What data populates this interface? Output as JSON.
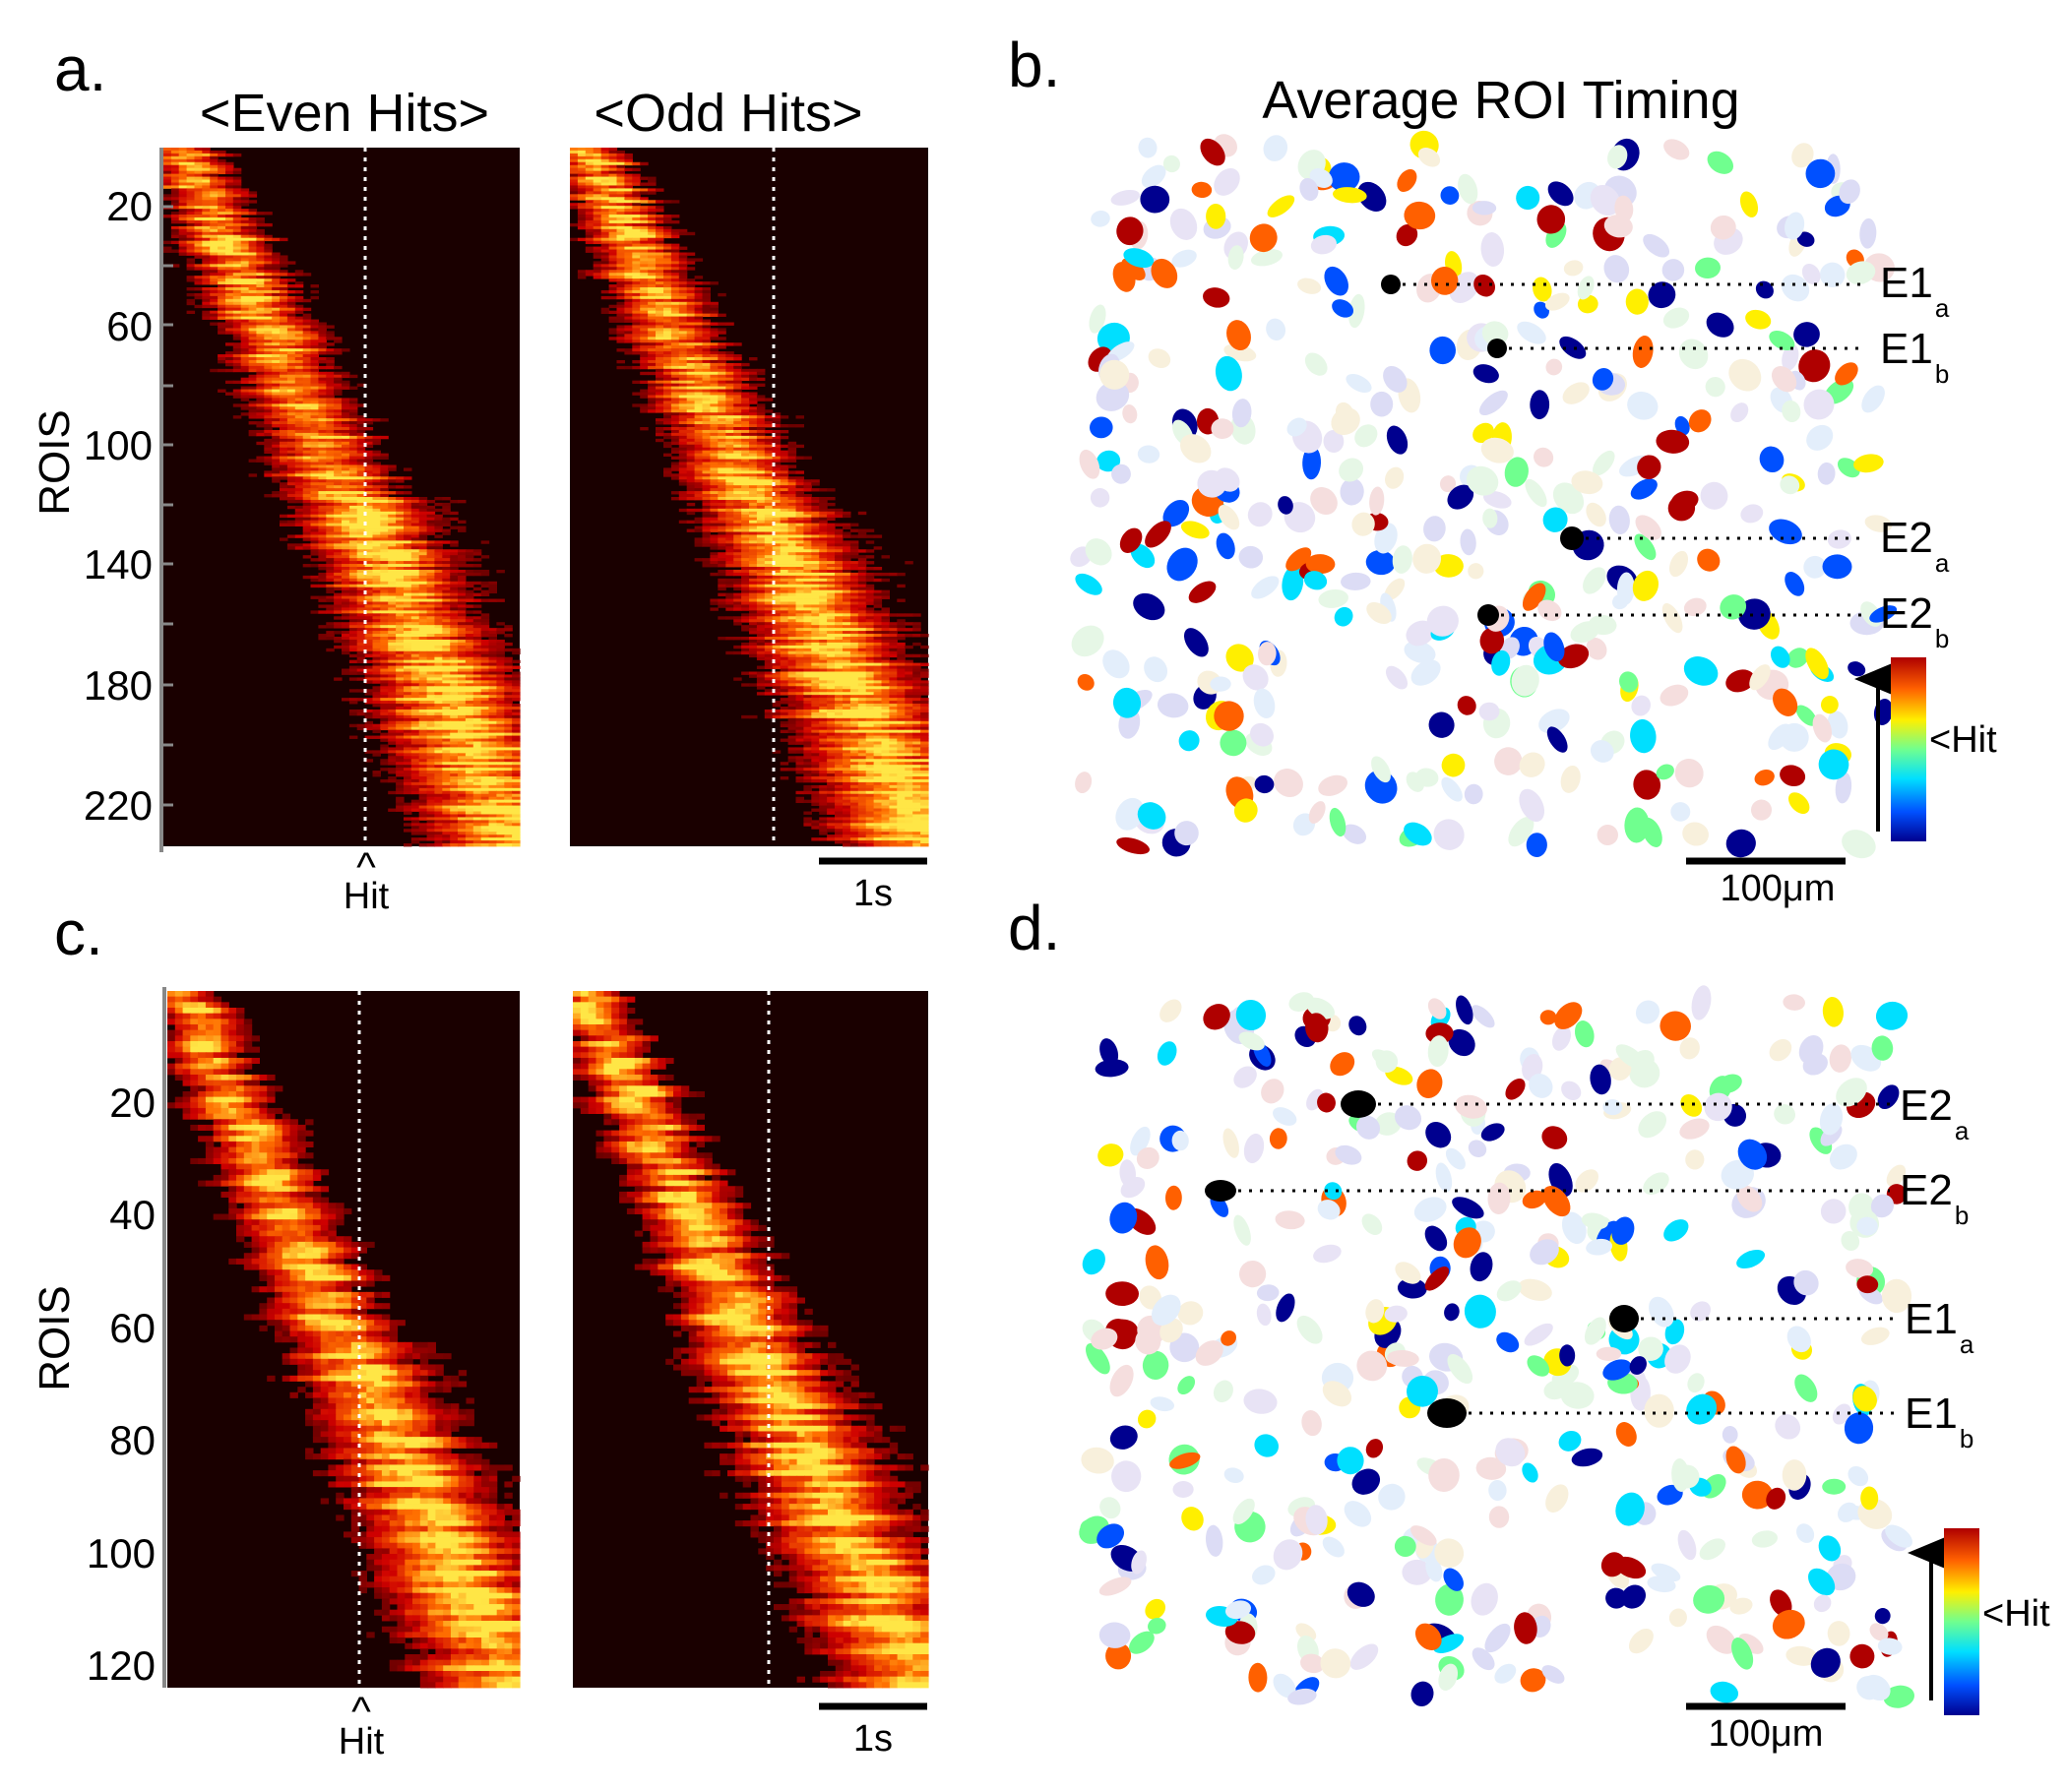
{
  "figure": {
    "panel_a": {
      "letter": "a.",
      "left_title": "<Even Hits>",
      "right_title": "<Odd Hits>",
      "y_axis_label": "ROIS",
      "y_ticks": [
        "20",
        "60",
        "100",
        "140",
        "180",
        "220"
      ],
      "hit_marker": "^",
      "hit_label": "Hit",
      "scale_label": "1s"
    },
    "panel_b": {
      "letter": "b.",
      "title": "Average ROI Timing",
      "labels": [
        {
          "main": "E1",
          "sub": "a"
        },
        {
          "main": "E1",
          "sub": "b"
        },
        {
          "main": "E2",
          "sub": "a"
        },
        {
          "main": "E2",
          "sub": "b"
        }
      ],
      "colorbar_label": "<Hit",
      "scale_label": "100μm"
    },
    "panel_c": {
      "letter": "c.",
      "y_axis_label": "ROIS",
      "y_ticks": [
        "20",
        "40",
        "60",
        "80",
        "100",
        "120"
      ],
      "hit_marker": "^",
      "hit_label": "Hit",
      "scale_label": "1s"
    },
    "panel_d": {
      "letter": "d.",
      "labels": [
        {
          "main": "E2",
          "sub": "a"
        },
        {
          "main": "E2",
          "sub": "b"
        },
        {
          "main": "E1",
          "sub": "a"
        },
        {
          "main": "E1",
          "sub": "b"
        }
      ],
      "colorbar_label": "<Hit",
      "scale_label": "100μm"
    }
  },
  "colors": {
    "heatmap_background": "#1a0000",
    "heatmap_hot": "#ff6a00",
    "heatmap_peak": "#ffd23a",
    "ensemble_marker": "#000000",
    "colormap": [
      "#00008f",
      "#0050ff",
      "#00dfff",
      "#70ff8f",
      "#ffef00",
      "#ff6000",
      "#af0000"
    ]
  },
  "heatmap_data": {
    "panel_a": {
      "n_rois": 240,
      "hit_fraction": 0.57,
      "peak_start_fraction": 0.05,
      "peak_end_fraction": 0.97
    },
    "panel_c": {
      "n_rois": 125,
      "hit_fraction": 0.55,
      "peak_start_fraction": 0.04,
      "peak_end_fraction": 0.95
    }
  }
}
